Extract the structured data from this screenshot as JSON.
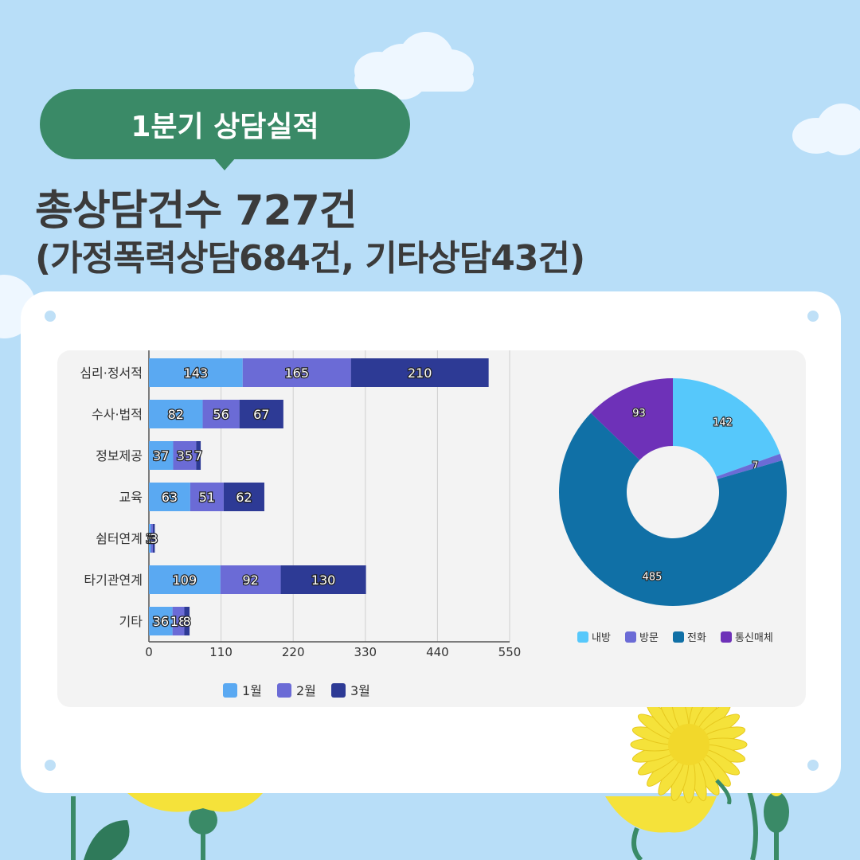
{
  "badge": "1분기 상담실적",
  "headline": "총상담건수 727건",
  "subline": "(가정폭력상담684건, 기타상담43건)",
  "chart_data": [
    {
      "type": "bar",
      "orientation": "horizontal",
      "stacked": true,
      "categories": [
        "심리·정서적",
        "수사·법적",
        "정보제공",
        "교육",
        "쉼터연계",
        "타기관연계",
        "기타"
      ],
      "series": [
        {
          "name": "1월",
          "color": "#5aa9f2",
          "values": [
            143,
            82,
            37,
            63,
            3,
            109,
            36
          ]
        },
        {
          "name": "2월",
          "color": "#6b6bd6",
          "values": [
            165,
            56,
            35,
            51,
            3,
            92,
            18
          ]
        },
        {
          "name": "3월",
          "color": "#2d3a95",
          "values": [
            210,
            67,
            7,
            62,
            3,
            130,
            8
          ]
        }
      ],
      "xlim": [
        0,
        550
      ],
      "xticks": [
        0,
        110,
        220,
        330,
        440,
        550
      ],
      "grid": true,
      "legend": "bottom"
    },
    {
      "type": "pie",
      "donut": true,
      "labels": [
        "내방",
        "방문",
        "전화",
        "통신매체"
      ],
      "values": [
        142,
        7,
        485,
        93
      ],
      "colors": [
        "#56c8fb",
        "#6b6bd6",
        "#1070a6",
        "#6e31b8"
      ],
      "legend": "bottom"
    }
  ]
}
